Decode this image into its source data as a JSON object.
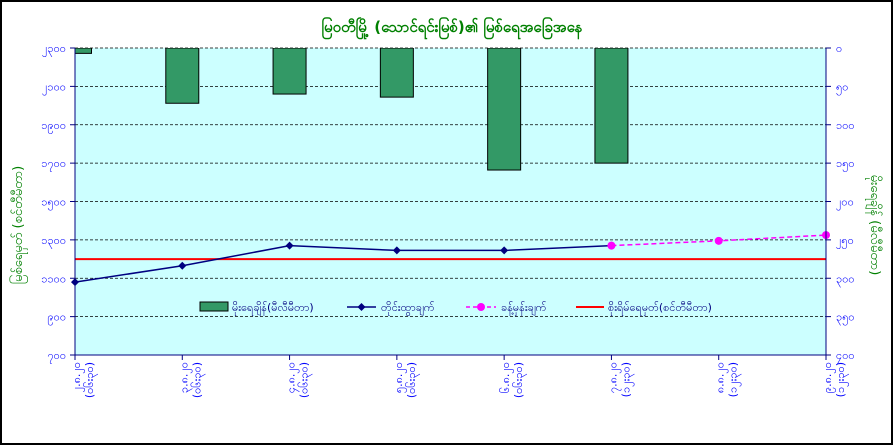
{
  "chart_data": {
    "type": "bar",
    "title": "မြဝတီမြို့ (သောင်ရင်းမြစ်)၏ မြစ်ရေအခြေအနေ",
    "xlabel": "",
    "ylabel": "မြစ်ရေမှတ် (စင်တီမီတာ)",
    "y2label": "မိုးရေချိန် (မီလီမီတာ)",
    "categories": [
      "၂.၈.၂၀",
      "၃.၈.၂၀",
      "၄.၈.၂၀",
      "၅.၈.၂၀",
      "၆.၈.၂၀",
      "၇.၈.၂၀",
      "၈.၈.၂၀",
      "၉.၈.၂၀"
    ],
    "category_times": [
      "(၀၆း၃၀)",
      "(၀၆း၃၀)",
      "(၀၆း၃၀)",
      "(၀၆း၃၀)",
      "(၀၆း၃၀)",
      "(၁၂း၃၀)",
      "(၁၂း၃၀)",
      "(၁၂း၃၀)"
    ],
    "ylim": [
      700,
      2300
    ],
    "yticks": [
      2300,
      2100,
      1900,
      1700,
      1500,
      1300,
      1100,
      900,
      700
    ],
    "ytick_labels": [
      "၂၃၀၀",
      "၂၁၀၀",
      "၁၉၀၀",
      "၁၇၀၀",
      "၁၅၀၀",
      "၁၃၀၀",
      "၁၁၀၀",
      "၉၀၀",
      "၇၀၀"
    ],
    "y2lim": [
      0,
      400
    ],
    "y2_inverted": true,
    "y2ticks": [
      0,
      50,
      100,
      150,
      200,
      250,
      300,
      350,
      400
    ],
    "y2tick_labels": [
      "၀",
      "၅၀",
      "၁၀၀",
      "၁၅၀",
      "၂၀၀",
      "၂၅၀",
      "၃၀၀",
      "၃၅၀",
      "၄၀၀"
    ],
    "grid": true,
    "legend": "bottom-center",
    "plot_background": "#CCFFFF",
    "title_color": "#008000",
    "tick_color": "#0000FF",
    "series": [
      {
        "name": "မိုးရေချိန်(မီလီမီတာ)",
        "type": "bar",
        "axis": "right",
        "color": "#339966",
        "values": [
          7,
          72,
          60,
          64,
          159,
          150,
          null,
          null
        ]
      },
      {
        "name": "တိုင်းထွာချက်",
        "type": "line",
        "axis": "left",
        "color": "#000080",
        "marker": "diamond",
        "values": [
          1080,
          1165,
          1270,
          1245,
          1245,
          1270,
          null,
          null
        ]
      },
      {
        "name": "ခန့်မှန်းချက်",
        "type": "line",
        "axis": "left",
        "color": "#FF00FF",
        "marker": "circle",
        "line_style": "dashed",
        "values": [
          null,
          null,
          null,
          null,
          null,
          1270,
          1295,
          1325
        ]
      },
      {
        "name": "စိုးရိမ်ရေမှတ်(စင်တီမီတာ)",
        "type": "line",
        "axis": "left",
        "color": "#FF0000",
        "values": [
          1200,
          1200,
          1200,
          1200,
          1200,
          1200,
          1200,
          1200
        ]
      }
    ]
  }
}
